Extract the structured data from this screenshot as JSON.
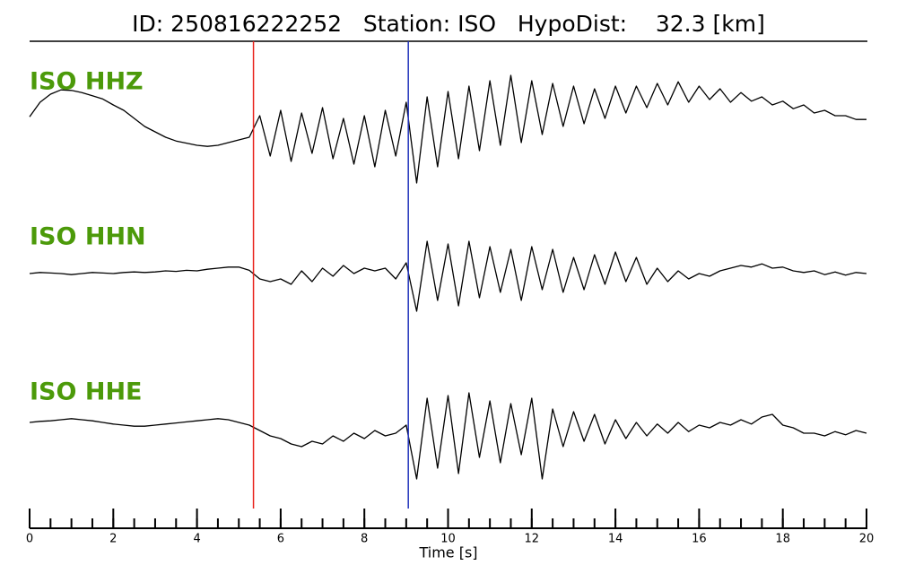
{
  "chart_data": {
    "type": "line",
    "title": "ID: 250816222252   Station: ISO   HypoDist:    32.3 [km]",
    "xlabel": "Time [s]",
    "xlim": [
      0,
      20
    ],
    "xticks": [
      0,
      2,
      4,
      6,
      8,
      10,
      12,
      14,
      16,
      18,
      20
    ],
    "xminorticks": [
      0,
      0.5,
      1,
      1.5,
      2,
      2.5,
      3,
      3.5,
      4,
      4.5,
      5,
      5.5,
      6,
      6.5,
      7,
      7.5,
      8,
      8.5,
      9,
      9.5,
      10,
      10.5,
      11,
      11.5,
      12,
      12.5,
      13,
      13.5,
      14,
      14.5,
      15,
      15.5,
      16,
      16.5,
      17,
      17.5,
      18,
      18.5,
      19,
      19.5,
      20
    ],
    "markers": [
      {
        "x": 5.35,
        "color": "#e8221b"
      },
      {
        "x": 9.05,
        "color": "#2233bb"
      }
    ],
    "label_color": "#4c9a0a",
    "x": [
      0,
      0.25,
      0.5,
      0.75,
      1,
      1.25,
      1.5,
      1.75,
      2,
      2.25,
      2.5,
      2.75,
      3,
      3.25,
      3.5,
      3.75,
      4,
      4.25,
      4.5,
      4.75,
      5,
      5.25,
      5.5,
      5.75,
      6,
      6.25,
      6.5,
      6.75,
      7,
      7.25,
      7.5,
      7.75,
      8,
      8.25,
      8.5,
      8.75,
      9,
      9.25,
      9.5,
      9.75,
      10,
      10.25,
      10.5,
      10.75,
      11,
      11.25,
      11.5,
      11.75,
      12,
      12.25,
      12.5,
      12.75,
      13,
      13.25,
      13.5,
      13.75,
      14,
      14.25,
      14.5,
      14.75,
      15,
      15.25,
      15.5,
      15.75,
      16,
      16.25,
      16.5,
      16.75,
      17,
      17.25,
      17.5,
      17.75,
      18,
      18.25,
      18.5,
      18.75,
      19,
      19.25,
      19.5,
      19.75,
      20
    ],
    "series": [
      {
        "name": "ISO HHZ",
        "color": "#000000",
        "values": [
          0.33,
          0.6,
          0.75,
          0.83,
          0.82,
          0.78,
          0.72,
          0.66,
          0.55,
          0.45,
          0.3,
          0.15,
          0.05,
          -0.05,
          -0.12,
          -0.16,
          -0.2,
          -0.22,
          -0.2,
          -0.15,
          -0.1,
          -0.05,
          0.35,
          -0.4,
          0.45,
          -0.5,
          0.4,
          -0.35,
          0.5,
          -0.45,
          0.3,
          -0.55,
          0.35,
          -0.6,
          0.45,
          -0.4,
          0.6,
          -0.9,
          0.7,
          -0.6,
          0.8,
          -0.45,
          0.9,
          -0.3,
          1.0,
          -0.2,
          1.1,
          -0.15,
          1.0,
          0.0,
          0.95,
          0.15,
          0.9,
          0.2,
          0.85,
          0.3,
          0.9,
          0.4,
          0.9,
          0.5,
          0.95,
          0.55,
          0.98,
          0.6,
          0.9,
          0.65,
          0.85,
          0.6,
          0.78,
          0.62,
          0.7,
          0.55,
          0.62,
          0.48,
          0.55,
          0.4,
          0.45,
          0.35,
          0.35,
          0.28,
          0.28
        ]
      },
      {
        "name": "ISO HHN",
        "color": "#000000",
        "values": [
          0,
          0.02,
          0.01,
          0,
          -0.02,
          0,
          0.02,
          0.01,
          0,
          0.02,
          0.03,
          0.02,
          0.03,
          0.05,
          0.04,
          0.06,
          0.05,
          0.08,
          0.1,
          0.12,
          0.12,
          0.06,
          -0.1,
          -0.15,
          -0.1,
          -0.2,
          0.05,
          -0.15,
          0.1,
          -0.05,
          0.15,
          0.0,
          0.1,
          0.05,
          0.1,
          -0.1,
          0.2,
          -0.7,
          0.6,
          -0.5,
          0.55,
          -0.6,
          0.6,
          -0.45,
          0.5,
          -0.35,
          0.45,
          -0.5,
          0.5,
          -0.3,
          0.45,
          -0.35,
          0.3,
          -0.3,
          0.35,
          -0.2,
          0.4,
          -0.15,
          0.3,
          -0.2,
          0.1,
          -0.15,
          0.05,
          -0.1,
          0.0,
          -0.05,
          0.05,
          0.1,
          0.15,
          0.12,
          0.18,
          0.1,
          0.12,
          0.05,
          0.02,
          0.05,
          -0.02,
          0.03,
          -0.03,
          0.02,
          0.0
        ]
      },
      {
        "name": "ISO HHE",
        "color": "#000000",
        "values": [
          0.15,
          0.17,
          0.18,
          0.2,
          0.22,
          0.2,
          0.18,
          0.15,
          0.12,
          0.1,
          0.08,
          0.08,
          0.1,
          0.12,
          0.14,
          0.16,
          0.18,
          0.2,
          0.22,
          0.2,
          0.15,
          0.1,
          0.0,
          -0.1,
          -0.15,
          -0.25,
          -0.3,
          -0.2,
          -0.25,
          -0.1,
          -0.2,
          -0.05,
          -0.15,
          0.0,
          -0.1,
          -0.05,
          0.1,
          -0.9,
          0.6,
          -0.7,
          0.65,
          -0.8,
          0.7,
          -0.5,
          0.55,
          -0.6,
          0.5,
          -0.45,
          0.6,
          -0.9,
          0.4,
          -0.3,
          0.35,
          -0.2,
          0.3,
          -0.25,
          0.2,
          -0.15,
          0.15,
          -0.1,
          0.12,
          -0.05,
          0.15,
          -0.02,
          0.1,
          0.05,
          0.15,
          0.1,
          0.2,
          0.12,
          0.25,
          0.3,
          0.1,
          0.05,
          -0.05,
          -0.05,
          -0.1,
          -0.02,
          -0.08,
          0.0,
          -0.05
        ]
      }
    ]
  }
}
